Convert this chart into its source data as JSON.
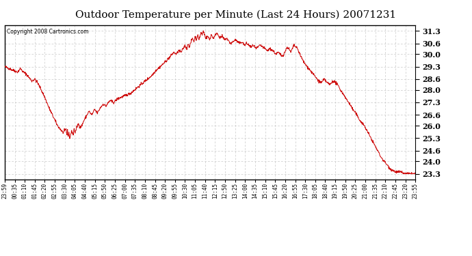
{
  "title": "Outdoor Temperature per Minute (Last 24 Hours) 20071231",
  "copyright": "Copyright 2008 Cartronics.com",
  "line_color": "#cc0000",
  "bg_color": "#ffffff",
  "grid_color": "#c8c8c8",
  "yticks": [
    23.3,
    24.0,
    24.6,
    25.3,
    26.0,
    26.6,
    27.3,
    28.0,
    28.6,
    29.3,
    30.0,
    30.6,
    31.3
  ],
  "ylim": [
    23.0,
    31.6
  ],
  "xtick_labels": [
    "23:59",
    "00:35",
    "01:10",
    "01:45",
    "02:20",
    "02:55",
    "03:30",
    "04:05",
    "04:40",
    "05:15",
    "05:50",
    "06:25",
    "07:00",
    "07:35",
    "08:10",
    "08:45",
    "09:20",
    "09:55",
    "10:30",
    "11:05",
    "11:40",
    "12:15",
    "12:50",
    "13:25",
    "14:00",
    "14:35",
    "15:10",
    "15:45",
    "16:20",
    "16:55",
    "17:30",
    "18:05",
    "18:40",
    "19:15",
    "19:50",
    "20:25",
    "21:00",
    "21:35",
    "22:10",
    "22:45",
    "23:20",
    "23:55"
  ],
  "num_points": 1440,
  "control_points": [
    [
      0,
      29.3
    ],
    [
      15,
      29.2
    ],
    [
      30,
      29.1
    ],
    [
      45,
      29.0
    ],
    [
      55,
      29.2
    ],
    [
      65,
      29.0
    ],
    [
      75,
      28.9
    ],
    [
      85,
      28.7
    ],
    [
      95,
      28.5
    ],
    [
      105,
      28.6
    ],
    [
      115,
      28.4
    ],
    [
      125,
      28.1
    ],
    [
      140,
      27.6
    ],
    [
      155,
      27.0
    ],
    [
      170,
      26.5
    ],
    [
      185,
      26.0
    ],
    [
      195,
      25.8
    ],
    [
      205,
      25.6
    ],
    [
      215,
      25.8
    ],
    [
      218,
      25.5
    ],
    [
      220,
      25.7
    ],
    [
      222,
      25.4
    ],
    [
      225,
      25.6
    ],
    [
      228,
      25.3
    ],
    [
      231,
      25.5
    ],
    [
      235,
      25.7
    ],
    [
      240,
      25.5
    ],
    [
      243,
      25.8
    ],
    [
      247,
      25.6
    ],
    [
      252,
      25.9
    ],
    [
      258,
      26.1
    ],
    [
      265,
      25.9
    ],
    [
      270,
      26.0
    ],
    [
      278,
      26.3
    ],
    [
      285,
      26.5
    ],
    [
      295,
      26.8
    ],
    [
      305,
      26.6
    ],
    [
      315,
      26.9
    ],
    [
      325,
      26.7
    ],
    [
      335,
      27.0
    ],
    [
      345,
      27.2
    ],
    [
      355,
      27.1
    ],
    [
      368,
      27.4
    ],
    [
      382,
      27.3
    ],
    [
      395,
      27.5
    ],
    [
      410,
      27.6
    ],
    [
      425,
      27.7
    ],
    [
      440,
      27.8
    ],
    [
      455,
      28.0
    ],
    [
      470,
      28.2
    ],
    [
      485,
      28.4
    ],
    [
      500,
      28.6
    ],
    [
      515,
      28.8
    ],
    [
      530,
      29.1
    ],
    [
      545,
      29.3
    ],
    [
      558,
      29.5
    ],
    [
      570,
      29.7
    ],
    [
      582,
      29.9
    ],
    [
      592,
      30.1
    ],
    [
      602,
      30.0
    ],
    [
      610,
      30.2
    ],
    [
      618,
      30.1
    ],
    [
      625,
      30.3
    ],
    [
      632,
      30.5
    ],
    [
      638,
      30.3
    ],
    [
      643,
      30.6
    ],
    [
      648,
      30.4
    ],
    [
      653,
      30.7
    ],
    [
      658,
      30.9
    ],
    [
      663,
      30.7
    ],
    [
      668,
      31.0
    ],
    [
      672,
      30.8
    ],
    [
      676,
      31.1
    ],
    [
      680,
      30.8
    ],
    [
      684,
      31.0
    ],
    [
      688,
      31.2
    ],
    [
      692,
      31.1
    ],
    [
      696,
      31.3
    ],
    [
      700,
      31.1
    ],
    [
      705,
      30.9
    ],
    [
      712,
      31.0
    ],
    [
      718,
      30.8
    ],
    [
      724,
      31.1
    ],
    [
      730,
      30.9
    ],
    [
      736,
      31.0
    ],
    [
      742,
      31.2
    ],
    [
      748,
      31.1
    ],
    [
      754,
      30.9
    ],
    [
      762,
      31.0
    ],
    [
      770,
      30.8
    ],
    [
      778,
      30.9
    ],
    [
      786,
      30.7
    ],
    [
      793,
      30.6
    ],
    [
      800,
      30.7
    ],
    [
      808,
      30.8
    ],
    [
      816,
      30.7
    ],
    [
      824,
      30.6
    ],
    [
      832,
      30.7
    ],
    [
      840,
      30.5
    ],
    [
      848,
      30.6
    ],
    [
      856,
      30.5
    ],
    [
      864,
      30.4
    ],
    [
      872,
      30.5
    ],
    [
      880,
      30.3
    ],
    [
      888,
      30.4
    ],
    [
      896,
      30.5
    ],
    [
      904,
      30.4
    ],
    [
      912,
      30.3
    ],
    [
      920,
      30.2
    ],
    [
      930,
      30.3
    ],
    [
      940,
      30.2
    ],
    [
      950,
      30.0
    ],
    [
      958,
      30.1
    ],
    [
      965,
      30.0
    ],
    [
      972,
      29.9
    ],
    [
      978,
      30.0
    ],
    [
      984,
      30.2
    ],
    [
      990,
      30.4
    ],
    [
      996,
      30.3
    ],
    [
      1002,
      30.1
    ],
    [
      1008,
      30.3
    ],
    [
      1014,
      30.5
    ],
    [
      1020,
      30.4
    ],
    [
      1026,
      30.3
    ],
    [
      1032,
      30.1
    ],
    [
      1040,
      29.8
    ],
    [
      1050,
      29.5
    ],
    [
      1060,
      29.3
    ],
    [
      1070,
      29.1
    ],
    [
      1080,
      28.9
    ],
    [
      1090,
      28.7
    ],
    [
      1100,
      28.5
    ],
    [
      1110,
      28.4
    ],
    [
      1120,
      28.6
    ],
    [
      1130,
      28.4
    ],
    [
      1140,
      28.3
    ],
    [
      1150,
      28.5
    ],
    [
      1160,
      28.4
    ],
    [
      1170,
      28.2
    ],
    [
      1180,
      27.9
    ],
    [
      1190,
      27.7
    ],
    [
      1200,
      27.4
    ],
    [
      1210,
      27.2
    ],
    [
      1220,
      26.9
    ],
    [
      1230,
      26.7
    ],
    [
      1240,
      26.4
    ],
    [
      1250,
      26.2
    ],
    [
      1260,
      26.0
    ],
    [
      1270,
      25.7
    ],
    [
      1280,
      25.4
    ],
    [
      1290,
      25.1
    ],
    [
      1300,
      24.8
    ],
    [
      1310,
      24.5
    ],
    [
      1320,
      24.2
    ],
    [
      1330,
      24.0
    ],
    [
      1340,
      23.8
    ],
    [
      1350,
      23.6
    ],
    [
      1360,
      23.5
    ],
    [
      1370,
      23.4
    ],
    [
      1380,
      23.4
    ],
    [
      1390,
      23.4
    ],
    [
      1400,
      23.3
    ],
    [
      1420,
      23.3
    ],
    [
      1439,
      23.3
    ]
  ]
}
